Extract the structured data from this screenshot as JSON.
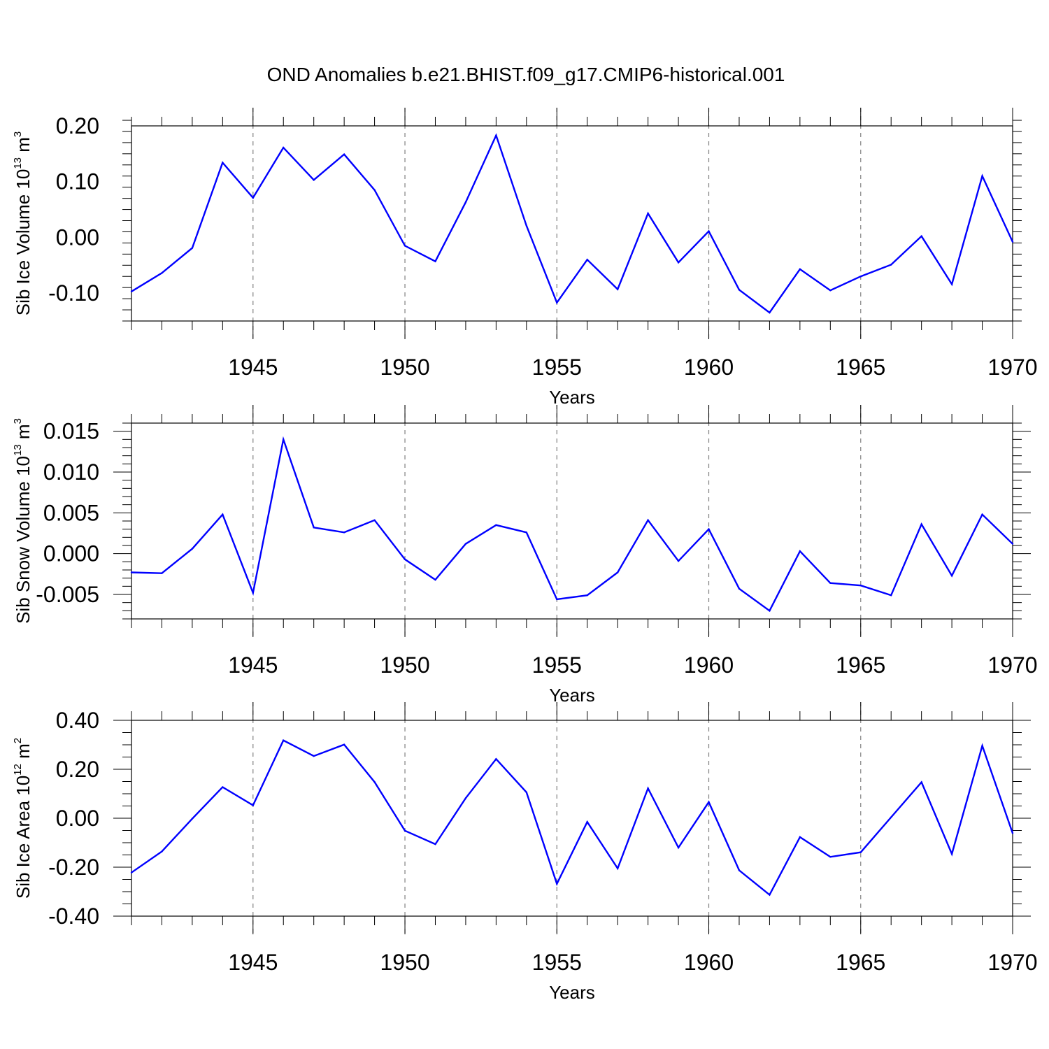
{
  "figure_title": "OND Anomalies b.e21.BHIST.f09_g17.CMIP6-historical.001",
  "colors": {
    "series": "#0000ff",
    "frame": "#000000",
    "grid": "#808080"
  },
  "chart_data": [
    {
      "type": "line",
      "title": "",
      "xlabel": "Years",
      "ylabel": {
        "prefix": "Sib Ice Volume 10",
        "exp": "13",
        "unit": " m",
        "unit_exp": "3"
      },
      "xlim": [
        1941,
        1970
      ],
      "ylim": [
        -0.15,
        0.2
      ],
      "yticks": [
        -0.1,
        0.0,
        0.1,
        0.2
      ],
      "ytick_labels": [
        "-0.10",
        "0.00",
        "0.10",
        "0.20"
      ],
      "yminor_step": 0.02,
      "xticks": [
        1945,
        1950,
        1955,
        1960,
        1965,
        1970
      ],
      "xtick_labels": [
        "1945",
        "1950",
        "1955",
        "1960",
        "1965",
        "1970"
      ],
      "grid": "vertical dashed at major x ticks",
      "series": [
        {
          "name": "Sib Ice Volume",
          "x": [
            1941,
            1942,
            1943,
            1944,
            1945,
            1946,
            1947,
            1948,
            1949,
            1950,
            1951,
            1952,
            1953,
            1954,
            1955,
            1956,
            1957,
            1958,
            1959,
            1960,
            1961,
            1962,
            1963,
            1964,
            1965,
            1966,
            1967,
            1968,
            1969,
            1970
          ],
          "values": [
            -0.097,
            -0.064,
            -0.019,
            0.134,
            0.071,
            0.161,
            0.103,
            0.149,
            0.085,
            -0.015,
            -0.043,
            0.063,
            0.183,
            0.021,
            -0.117,
            -0.04,
            -0.093,
            0.043,
            -0.045,
            0.011,
            -0.094,
            -0.135,
            -0.057,
            -0.095,
            -0.07,
            -0.049,
            0.002,
            -0.084,
            0.11,
            -0.008
          ]
        }
      ]
    },
    {
      "type": "line",
      "title": "",
      "xlabel": "Years",
      "ylabel": {
        "prefix": "Sib Snow Volume 10",
        "exp": "13",
        "unit": " m",
        "unit_exp": "3"
      },
      "xlim": [
        1941,
        1970
      ],
      "ylim": [
        -0.008,
        0.016
      ],
      "yticks": [
        -0.005,
        0.0,
        0.005,
        0.01,
        0.015
      ],
      "ytick_labels": [
        "-0.005",
        "0.000",
        "0.005",
        "0.010",
        "0.015"
      ],
      "yminor_step": 0.001,
      "xticks": [
        1945,
        1950,
        1955,
        1960,
        1965,
        1970
      ],
      "xtick_labels": [
        "1945",
        "1950",
        "1955",
        "1960",
        "1965",
        "1970"
      ],
      "grid": "vertical dashed at major x ticks",
      "series": [
        {
          "name": "Sib Snow Volume",
          "x": [
            1941,
            1942,
            1943,
            1944,
            1945,
            1946,
            1947,
            1948,
            1949,
            1950,
            1951,
            1952,
            1953,
            1954,
            1955,
            1956,
            1957,
            1958,
            1959,
            1960,
            1961,
            1962,
            1963,
            1964,
            1965,
            1966,
            1967,
            1968,
            1969,
            1970
          ],
          "values": [
            -0.0023,
            -0.0024,
            0.0006,
            0.0048,
            -0.0048,
            0.014,
            0.0032,
            0.0026,
            0.0041,
            -0.0007,
            -0.0032,
            0.0012,
            0.0035,
            0.0026,
            -0.0056,
            -0.0051,
            -0.0023,
            0.0041,
            -0.0009,
            0.003,
            -0.0043,
            -0.007,
            0.0003,
            -0.0036,
            -0.0039,
            -0.0051,
            0.0036,
            -0.0027,
            0.0048,
            0.0012
          ]
        }
      ]
    },
    {
      "type": "line",
      "title": "",
      "xlabel": "Years",
      "ylabel": {
        "prefix": "Sib Ice Area 10",
        "exp": "12",
        "unit": " m",
        "unit_exp": "2"
      },
      "xlim": [
        1941,
        1970
      ],
      "ylim": [
        -0.4,
        0.4
      ],
      "yticks": [
        -0.4,
        -0.2,
        0.0,
        0.2,
        0.4
      ],
      "ytick_labels": [
        "-0.40",
        "-0.20",
        "0.00",
        "0.20",
        "0.40"
      ],
      "yminor_step": 0.05,
      "xticks": [
        1945,
        1950,
        1955,
        1960,
        1965,
        1970
      ],
      "xtick_labels": [
        "1945",
        "1950",
        "1955",
        "1960",
        "1965",
        "1970"
      ],
      "grid": "vertical dashed at major x ticks",
      "series": [
        {
          "name": "Sib Ice Area",
          "x": [
            1941,
            1942,
            1943,
            1944,
            1945,
            1946,
            1947,
            1948,
            1949,
            1950,
            1951,
            1952,
            1953,
            1954,
            1955,
            1956,
            1957,
            1958,
            1959,
            1960,
            1961,
            1962,
            1963,
            1964,
            1965,
            1966,
            1967,
            1968,
            1969,
            1970
          ],
          "values": [
            -0.222,
            -0.136,
            -0.002,
            0.127,
            0.053,
            0.318,
            0.254,
            0.301,
            0.148,
            -0.051,
            -0.106,
            0.082,
            0.242,
            0.106,
            -0.268,
            -0.015,
            -0.205,
            0.122,
            -0.12,
            0.066,
            -0.213,
            -0.313,
            -0.077,
            -0.158,
            -0.139,
            0.004,
            0.147,
            -0.146,
            0.296,
            -0.061
          ]
        }
      ]
    }
  ]
}
